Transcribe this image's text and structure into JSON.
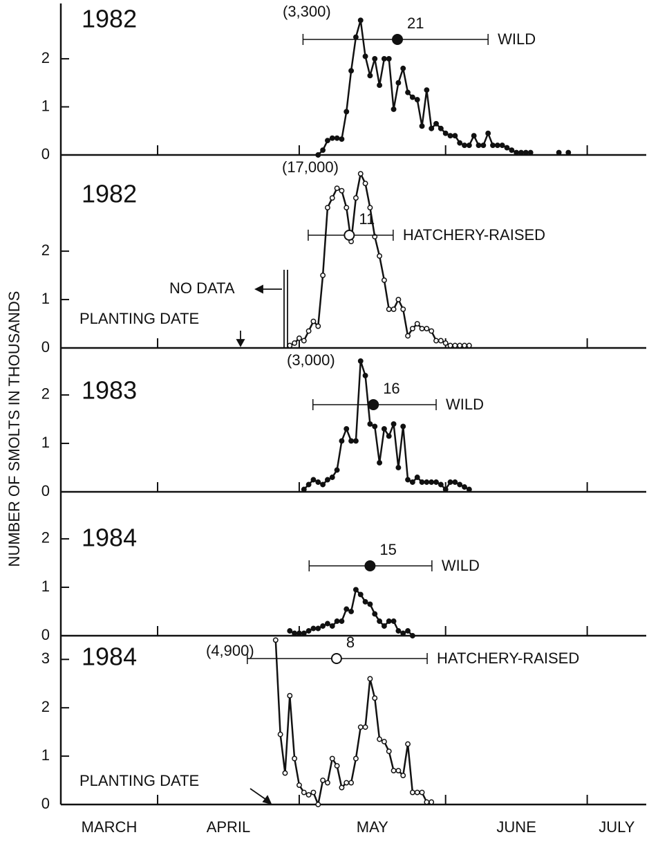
{
  "ylabel": "NUMBER OF SMOLTS IN THOUSANDS",
  "chart_data": [
    {
      "type": "line",
      "title": "1982",
      "peak_label": "(3,300)",
      "x": [
        65,
        66,
        67,
        68,
        69,
        70,
        71,
        72,
        73,
        74,
        75,
        76,
        77,
        78,
        79,
        80,
        81,
        82,
        83,
        84,
        85,
        86,
        87,
        88,
        89,
        90,
        91,
        92,
        93,
        94,
        95,
        96,
        97,
        98,
        99,
        100,
        101,
        102,
        103,
        104,
        105,
        106,
        107,
        108,
        109,
        110,
        111,
        116,
        117,
        118
      ],
      "series": [
        {
          "name": "WILD",
          "color": "#111",
          "marker": "filled",
          "values": [
            0,
            0.1,
            0.3,
            0.35,
            0.35,
            0.33,
            0.9,
            1.75,
            2.45,
            2.8,
            2.05,
            1.65,
            2.0,
            1.45,
            2.0,
            2.0,
            0.95,
            1.5,
            1.8,
            1.3,
            1.2,
            1.15,
            0.6,
            1.35,
            0.55,
            0.65,
            0.55,
            0.45,
            0.4,
            0.4,
            0.25,
            0.2,
            0.2,
            0.4,
            0.2,
            0.2,
            0.45,
            0.2,
            0.2,
            0.2,
            0.15,
            0.1,
            0.05,
            0.05,
            0.05,
            0.05,
            null,
            0.05,
            null,
            0.05
          ]
        }
      ],
      "range_bar": {
        "low": 61.8,
        "mean": 81.8,
        "high": 101.0,
        "label": "21"
      },
      "xlim": [
        10.5,
        134.5
      ],
      "xticks": [
        31,
        61,
        92,
        122
      ],
      "ylim": [
        0,
        3.15
      ],
      "yticks": [
        0,
        1,
        2
      ]
    },
    {
      "type": "line",
      "title": "1982",
      "peak_label": "(17,000)",
      "notes": [
        "NO DATA",
        "PLANTING DATE"
      ],
      "x": [
        59,
        60,
        61,
        62,
        63,
        64,
        65,
        66,
        67,
        68,
        69,
        70,
        71,
        72,
        73,
        74,
        75,
        76,
        77,
        78,
        79,
        80,
        81,
        82,
        83,
        84,
        85,
        86,
        87,
        88,
        89,
        90,
        91,
        92,
        93,
        94,
        95,
        96,
        97
      ],
      "series": [
        {
          "name": "HATCHERY-RAISED",
          "color": "#111",
          "marker": "open",
          "values": [
            0.05,
            0.1,
            0.2,
            0.15,
            0.35,
            0.55,
            0.45,
            1.5,
            2.9,
            3.1,
            3.3,
            3.25,
            2.9,
            2.2,
            3.1,
            3.6,
            3.4,
            2.9,
            2.3,
            1.9,
            1.4,
            0.8,
            0.8,
            1.0,
            0.8,
            0.25,
            0.4,
            0.5,
            0.4,
            0.4,
            0.35,
            0.15,
            0.15,
            0.1,
            0.05,
            0.05,
            0.05,
            0.05,
            0.05
          ]
        }
      ],
      "range_bar": {
        "low": 62.9,
        "mean": 71.6,
        "high": 80.9,
        "label": "11"
      },
      "xlim": [
        10.5,
        134.5
      ],
      "xticks": [
        31,
        61,
        92,
        122
      ],
      "ylim": [
        0,
        3.96
      ],
      "yticks": [
        0,
        1,
        2
      ]
    },
    {
      "type": "line",
      "title": "1983",
      "peak_label": "(3,000)",
      "x": [
        62,
        63,
        64,
        65,
        66,
        67,
        68,
        69,
        70,
        71,
        72,
        73,
        74,
        75,
        76,
        77,
        78,
        79,
        80,
        81,
        82,
        83,
        84,
        85,
        86,
        87,
        88,
        89,
        90,
        91,
        92,
        93,
        94,
        95,
        96,
        97
      ],
      "series": [
        {
          "name": "WILD",
          "color": "#111",
          "marker": "filled",
          "values": [
            0.05,
            0.15,
            0.25,
            0.2,
            0.15,
            0.25,
            0.3,
            0.45,
            1.05,
            1.3,
            1.05,
            1.05,
            2.7,
            2.4,
            1.4,
            1.35,
            0.6,
            1.3,
            1.15,
            1.4,
            0.5,
            1.35,
            0.25,
            0.2,
            0.3,
            0.2,
            0.2,
            0.2,
            0.2,
            0.15,
            0.05,
            0.2,
            0.2,
            0.15,
            0.1,
            0.05
          ]
        }
      ],
      "range_bar": {
        "low": 63.9,
        "mean": 76.7,
        "high": 90.0,
        "label": "16"
      },
      "xlim": [
        10.5,
        134.5
      ],
      "xticks": [
        31,
        61,
        92,
        122
      ],
      "ylim": [
        0,
        2.97
      ],
      "yticks": [
        0,
        1,
        2
      ]
    },
    {
      "type": "line",
      "title": "1984",
      "x": [
        59,
        60,
        61,
        62,
        63,
        64,
        65,
        66,
        67,
        68,
        69,
        70,
        71,
        72,
        73,
        74,
        75,
        76,
        77,
        78,
        79,
        80,
        81,
        82,
        83,
        84,
        85
      ],
      "series": [
        {
          "name": "WILD",
          "color": "#111",
          "marker": "filled",
          "values": [
            0.1,
            0.05,
            0.05,
            0.05,
            0.1,
            0.15,
            0.15,
            0.2,
            0.25,
            0.2,
            0.3,
            0.3,
            0.55,
            0.5,
            0.95,
            0.85,
            0.7,
            0.65,
            0.45,
            0.3,
            0.2,
            0.3,
            0.3,
            0.1,
            0.05,
            0.1,
            0
          ]
        }
      ],
      "range_bar": {
        "low": 63.1,
        "mean": 76.0,
        "high": 89.1,
        "label": "15"
      },
      "xlim": [
        10.5,
        134.5
      ],
      "xticks": [
        31,
        61,
        92,
        122
      ],
      "ylim": [
        0,
        2.97
      ],
      "yticks": [
        0,
        1,
        2
      ]
    },
    {
      "type": "line",
      "title": "1984",
      "peak_label": "(4,900)",
      "notes": [
        "PLANTING DATE"
      ],
      "x": [
        56,
        57,
        58,
        59,
        60,
        61,
        62,
        63,
        64,
        65,
        66,
        67,
        68,
        69,
        70,
        71,
        72,
        73,
        74,
        75,
        76,
        77,
        78,
        79,
        80,
        81,
        82,
        83,
        84,
        85,
        86,
        87,
        88,
        89
      ],
      "series": [
        {
          "name": "HATCHERY-RAISED",
          "color": "#111",
          "marker": "open",
          "values": [
            3.4,
            1.45,
            0.65,
            2.25,
            0.95,
            0.4,
            0.25,
            0.2,
            0.25,
            0,
            0.5,
            0.45,
            0.95,
            0.8,
            0.35,
            0.45,
            0.45,
            0.95,
            1.6,
            1.6,
            2.6,
            2.2,
            1.35,
            1.3,
            1.1,
            0.7,
            0.7,
            0.6,
            1.25,
            0.25,
            0.25,
            0.25,
            0.05,
            0.05
          ]
        }
      ],
      "range_bar": {
        "low": 50.0,
        "mean": 68.9,
        "high": 88.1,
        "label": "8"
      },
      "xlim": [
        10.5,
        134.5
      ],
      "xticks": [
        31,
        61,
        92,
        122
      ],
      "ylim": [
        0,
        3.49
      ],
      "yticks": [
        0,
        1,
        2,
        3
      ],
      "month_labels": [
        "MARCH",
        "APRIL",
        "MAY",
        "JUNE",
        "JULY"
      ]
    }
  ]
}
